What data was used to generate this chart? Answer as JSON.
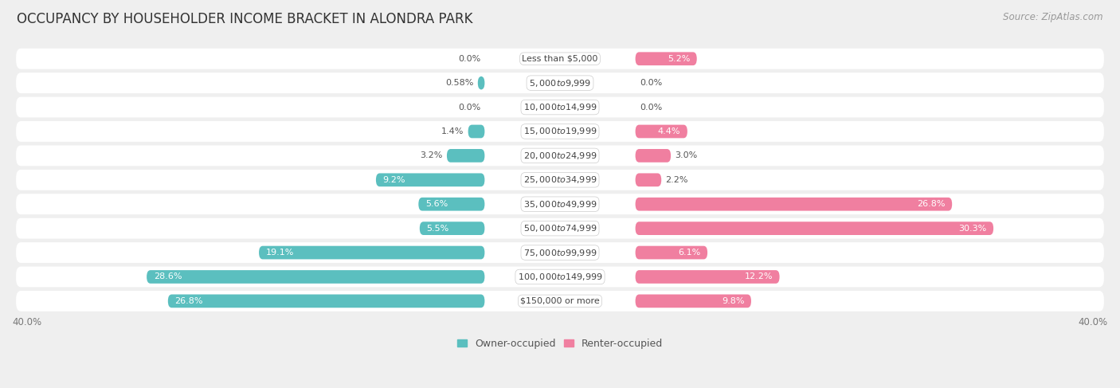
{
  "title": "OCCUPANCY BY HOUSEHOLDER INCOME BRACKET IN ALONDRA PARK",
  "source": "Source: ZipAtlas.com",
  "categories": [
    "Less than $5,000",
    "$5,000 to $9,999",
    "$10,000 to $14,999",
    "$15,000 to $19,999",
    "$20,000 to $24,999",
    "$25,000 to $34,999",
    "$35,000 to $49,999",
    "$50,000 to $74,999",
    "$75,000 to $99,999",
    "$100,000 to $149,999",
    "$150,000 or more"
  ],
  "owner_values": [
    0.0,
    0.58,
    0.0,
    1.4,
    3.2,
    9.2,
    5.6,
    5.5,
    19.1,
    28.6,
    26.8
  ],
  "renter_values": [
    5.2,
    0.0,
    0.0,
    4.4,
    3.0,
    2.2,
    26.8,
    30.3,
    6.1,
    12.2,
    9.8
  ],
  "owner_color": "#5bbfbf",
  "renter_color": "#f07fa0",
  "owner_label": "Owner-occupied",
  "renter_label": "Renter-occupied",
  "axis_max": 40.0,
  "axis_label_left": "40.0%",
  "axis_label_right": "40.0%",
  "background_color": "#efefef",
  "row_color": "#ffffff",
  "title_fontsize": 12,
  "source_fontsize": 8.5,
  "label_fontsize": 8,
  "category_fontsize": 8,
  "legend_fontsize": 9,
  "axis_tick_fontsize": 8.5
}
